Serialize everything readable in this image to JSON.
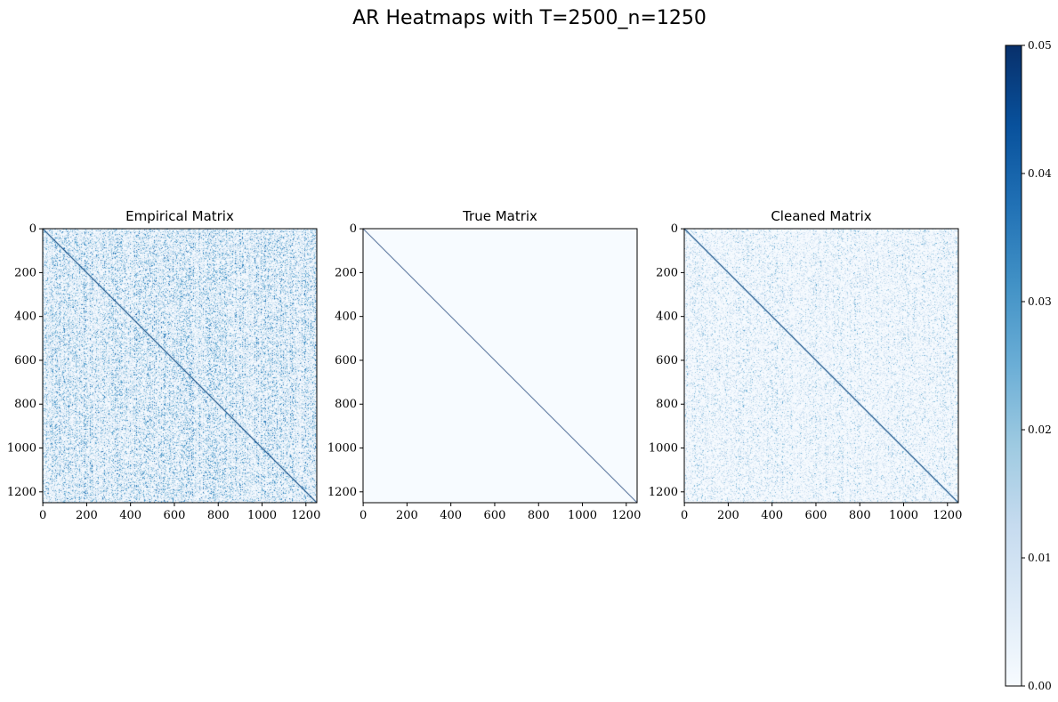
{
  "figure": {
    "title": "AR Heatmaps with T=2500_n=1250"
  },
  "colors": {
    "colormap": "Blues",
    "low": "#f7fbff",
    "high": "#08306b"
  },
  "chart_data": [
    {
      "type": "heatmap",
      "title": "Empirical Matrix",
      "matrix_size": 1250,
      "x_ticks": [
        0,
        200,
        400,
        600,
        800,
        1000,
        1200
      ],
      "y_ticks": [
        0,
        200,
        400,
        600,
        800,
        1000,
        1200
      ],
      "diagonal_value": 0.05,
      "off_diagonal_noise": "dense",
      "off_diagonal_typical_range": [
        0.0,
        0.03
      ]
    },
    {
      "type": "heatmap",
      "title": "True Matrix",
      "matrix_size": 1250,
      "x_ticks": [
        0,
        200,
        400,
        600,
        800,
        1000,
        1200
      ],
      "y_ticks": [
        0,
        200,
        400,
        600,
        800,
        1000,
        1200
      ],
      "diagonal_value": 0.05,
      "off_diagonal_noise": "none",
      "off_diagonal_typical_range": [
        0.0,
        0.0
      ]
    },
    {
      "type": "heatmap",
      "title": "Cleaned Matrix",
      "matrix_size": 1250,
      "x_ticks": [
        0,
        200,
        400,
        600,
        800,
        1000,
        1200
      ],
      "y_ticks": [
        0,
        200,
        400,
        600,
        800,
        1000,
        1200
      ],
      "diagonal_value": 0.05,
      "off_diagonal_noise": "moderate",
      "off_diagonal_typical_range": [
        0.0,
        0.02
      ]
    }
  ],
  "colorbar": {
    "min": 0.0,
    "max": 0.05,
    "ticks": [
      "0.00",
      "0.01",
      "0.02",
      "0.03",
      "0.04",
      "0.05"
    ]
  }
}
